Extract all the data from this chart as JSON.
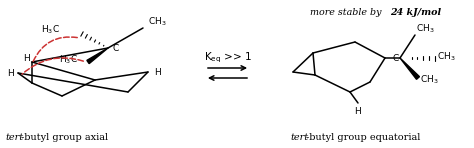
{
  "bg_color": "#ffffff",
  "label_axial_italic": "tert",
  "label_axial_rest": "-butyl group axial",
  "label_equatorial_italic": "tert",
  "label_equatorial_rest": "-butyl group equatorial",
  "more_stable_italic": "more stable by ",
  "more_stable_bold": "24 kJ/mol",
  "fig_width": 4.74,
  "fig_height": 1.48,
  "dpi": 100
}
